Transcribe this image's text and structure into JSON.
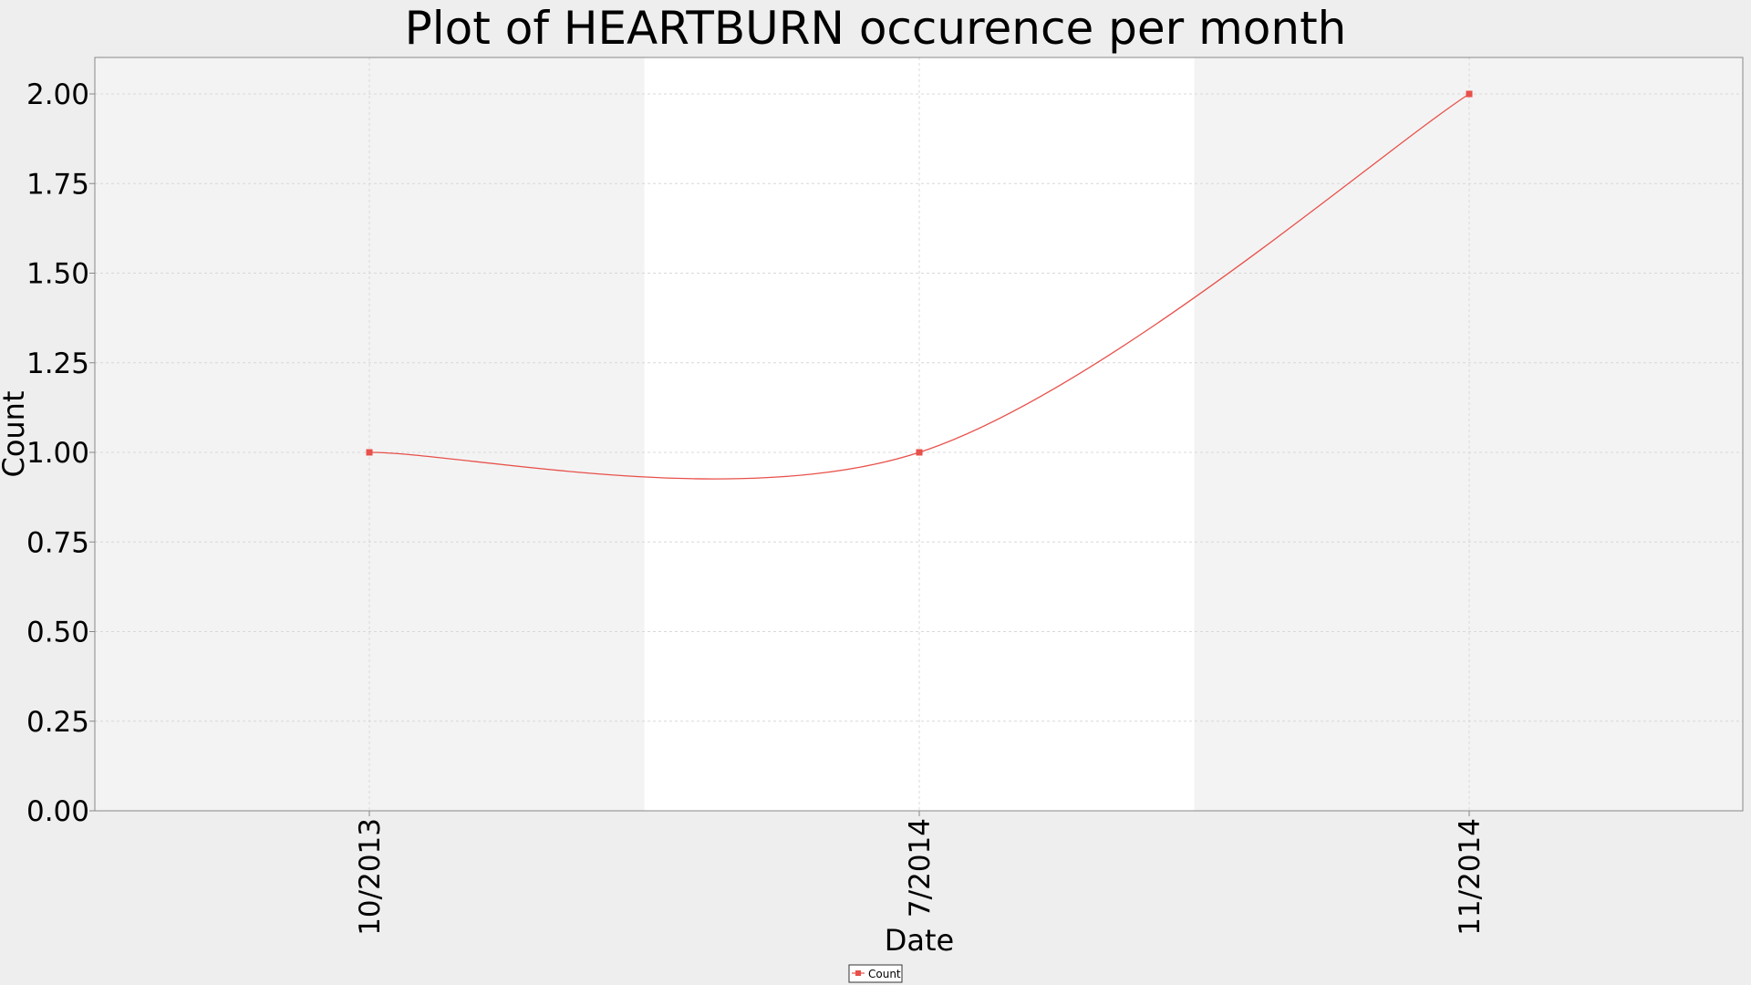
{
  "chart_data": {
    "type": "line",
    "title": "Plot of HEARTBURN occurence per month",
    "xlabel": "Date",
    "ylabel": "Count",
    "x_categories": [
      "10/2013",
      "7/2014",
      "11/2014"
    ],
    "series": [
      {
        "name": "Count",
        "values": [
          1.0,
          1.0,
          2.0
        ],
        "color": "#e8504a"
      }
    ],
    "ylim": [
      0,
      2.0
    ],
    "y_ticks": [
      "0.00",
      "0.25",
      "0.50",
      "0.75",
      "1.00",
      "1.25",
      "1.50",
      "1.75",
      "2.00"
    ],
    "y_tick_values": [
      0,
      0.25,
      0.5,
      0.75,
      1.0,
      1.25,
      1.5,
      1.75,
      2.0
    ],
    "grid": true,
    "smoothed": true,
    "legend_position": "bottom-center",
    "colors": {
      "page_background": "#eeeeee",
      "band_shaded": "#f3f3f3",
      "band_white": "#ffffff",
      "series_line": "#e8504a",
      "axis": "#888888"
    }
  }
}
